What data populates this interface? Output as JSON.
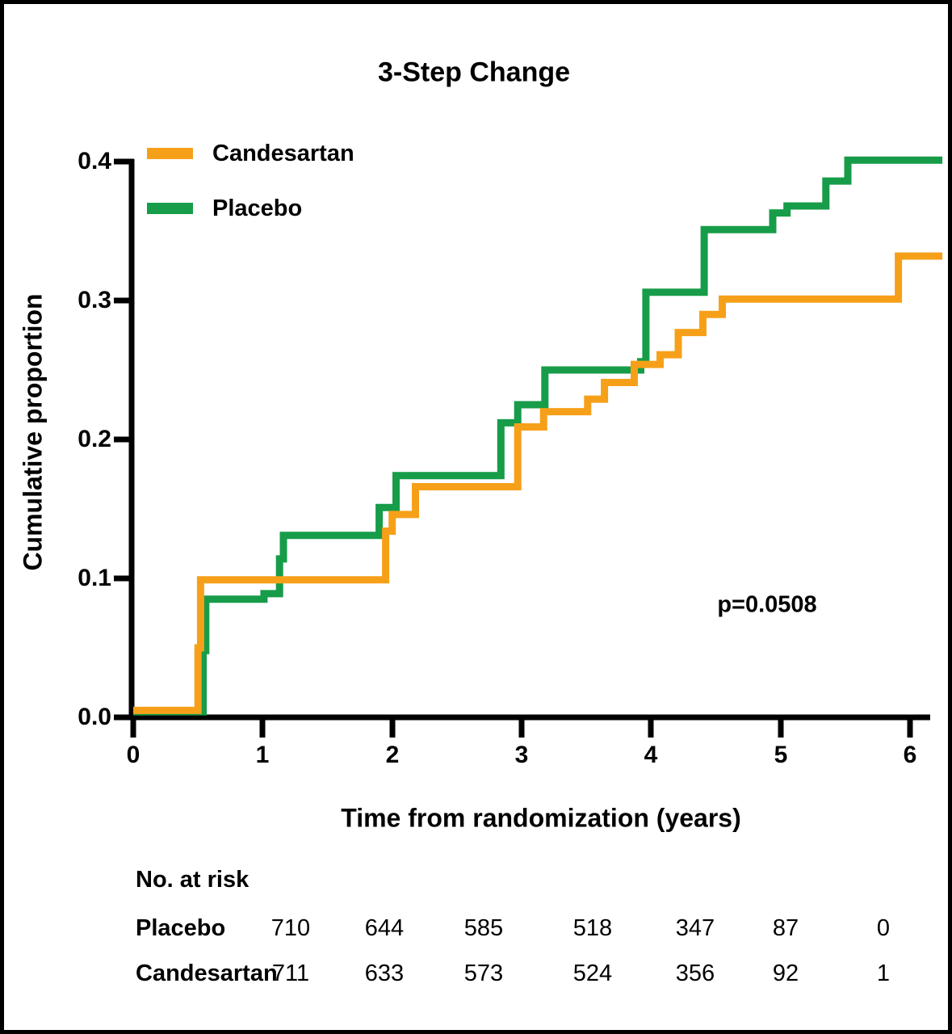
{
  "title": "3-Step Change",
  "p_value": "p=0.0508",
  "axes": {
    "y_label": "Cumulative proportion",
    "x_label": "Time from randomization (years)",
    "y_ticks": [
      "0.0",
      "0.1",
      "0.2",
      "0.3",
      "0.4"
    ],
    "x_ticks": [
      "0",
      "1",
      "2",
      "3",
      "4",
      "5",
      "6"
    ]
  },
  "legend": [
    {
      "label": "Candesartan",
      "color": "#F6A01A"
    },
    {
      "label": "Placebo",
      "color": "#179C49"
    }
  ],
  "chart_data": {
    "type": "line",
    "subtype": "kaplan-meier-step",
    "title": "3-Step Change",
    "xlabel": "Time from randomization (years)",
    "ylabel": "Cumulative proportion",
    "xlim": [
      0,
      6.3
    ],
    "ylim": [
      0.0,
      0.4
    ],
    "grid": false,
    "legend_position": "top-left-inside",
    "annotation": "p=0.0508",
    "series": [
      {
        "name": "Placebo",
        "color": "#179C49",
        "points": [
          [
            0,
            0.004
          ],
          [
            0.54,
            0.048
          ],
          [
            0.56,
            0.085
          ],
          [
            1.01,
            0.089
          ],
          [
            1.13,
            0.114
          ],
          [
            1.16,
            0.131
          ],
          [
            1.9,
            0.151
          ],
          [
            2.03,
            0.174
          ],
          [
            2.84,
            0.212
          ],
          [
            2.97,
            0.225
          ],
          [
            3.18,
            0.25
          ],
          [
            3.92,
            0.256
          ],
          [
            3.96,
            0.306
          ],
          [
            4.41,
            0.351
          ],
          [
            4.94,
            0.363
          ],
          [
            5.05,
            0.368
          ],
          [
            5.35,
            0.386
          ],
          [
            5.52,
            0.401
          ],
          [
            6.25,
            0.401
          ]
        ]
      },
      {
        "name": "Candesartan",
        "color": "#F6A01A",
        "points": [
          [
            0,
            0.005
          ],
          [
            0.5,
            0.05
          ],
          [
            0.52,
            0.099
          ],
          [
            1.95,
            0.134
          ],
          [
            2.0,
            0.146
          ],
          [
            2.18,
            0.166
          ],
          [
            2.97,
            0.209
          ],
          [
            3.17,
            0.22
          ],
          [
            3.51,
            0.229
          ],
          [
            3.64,
            0.241
          ],
          [
            3.87,
            0.254
          ],
          [
            4.07,
            0.261
          ],
          [
            4.21,
            0.277
          ],
          [
            4.4,
            0.29
          ],
          [
            4.55,
            0.301
          ],
          [
            5.91,
            0.332
          ],
          [
            6.25,
            0.332
          ]
        ]
      }
    ]
  },
  "risk_table": {
    "heading": "No. at risk",
    "rows": [
      {
        "label": "Placebo",
        "counts": [
          "710",
          "644",
          "585",
          "518",
          "347",
          "87",
          "0"
        ]
      },
      {
        "label": "Candesartan",
        "counts": [
          "711",
          "633",
          "573",
          "524",
          "356",
          "92",
          "1"
        ]
      }
    ]
  }
}
